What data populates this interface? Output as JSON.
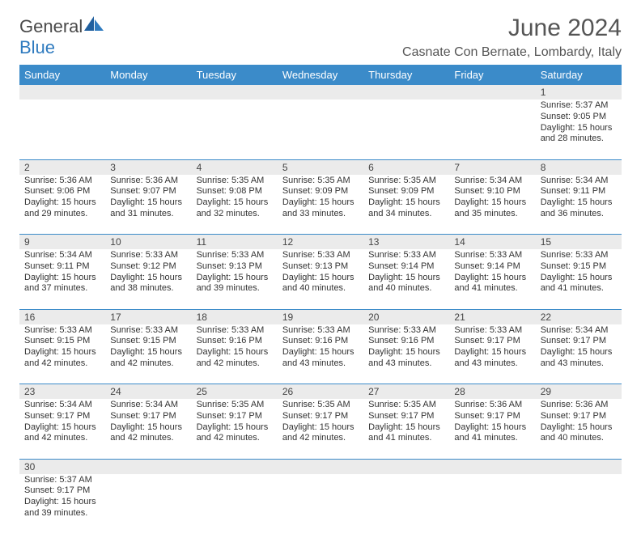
{
  "logo": {
    "text1": "General",
    "text2": "Blue"
  },
  "title": "June 2024",
  "location": "Casnate Con Bernate, Lombardy, Italy",
  "colors": {
    "header_bg": "#3b8bc9",
    "header_text": "#ffffff",
    "daynum_bg": "#ebebeb",
    "border": "#3b8bc9",
    "logo_gray": "#4a4a4a",
    "logo_blue": "#2f7bbf"
  },
  "weekdays": [
    "Sunday",
    "Monday",
    "Tuesday",
    "Wednesday",
    "Thursday",
    "Friday",
    "Saturday"
  ],
  "weeks": [
    {
      "nums": [
        "",
        "",
        "",
        "",
        "",
        "",
        "1"
      ],
      "cells": [
        null,
        null,
        null,
        null,
        null,
        null,
        {
          "sunrise": "Sunrise: 5:37 AM",
          "sunset": "Sunset: 9:05 PM",
          "day1": "Daylight: 15 hours",
          "day2": "and 28 minutes."
        }
      ]
    },
    {
      "nums": [
        "2",
        "3",
        "4",
        "5",
        "6",
        "7",
        "8"
      ],
      "cells": [
        {
          "sunrise": "Sunrise: 5:36 AM",
          "sunset": "Sunset: 9:06 PM",
          "day1": "Daylight: 15 hours",
          "day2": "and 29 minutes."
        },
        {
          "sunrise": "Sunrise: 5:36 AM",
          "sunset": "Sunset: 9:07 PM",
          "day1": "Daylight: 15 hours",
          "day2": "and 31 minutes."
        },
        {
          "sunrise": "Sunrise: 5:35 AM",
          "sunset": "Sunset: 9:08 PM",
          "day1": "Daylight: 15 hours",
          "day2": "and 32 minutes."
        },
        {
          "sunrise": "Sunrise: 5:35 AM",
          "sunset": "Sunset: 9:09 PM",
          "day1": "Daylight: 15 hours",
          "day2": "and 33 minutes."
        },
        {
          "sunrise": "Sunrise: 5:35 AM",
          "sunset": "Sunset: 9:09 PM",
          "day1": "Daylight: 15 hours",
          "day2": "and 34 minutes."
        },
        {
          "sunrise": "Sunrise: 5:34 AM",
          "sunset": "Sunset: 9:10 PM",
          "day1": "Daylight: 15 hours",
          "day2": "and 35 minutes."
        },
        {
          "sunrise": "Sunrise: 5:34 AM",
          "sunset": "Sunset: 9:11 PM",
          "day1": "Daylight: 15 hours",
          "day2": "and 36 minutes."
        }
      ]
    },
    {
      "nums": [
        "9",
        "10",
        "11",
        "12",
        "13",
        "14",
        "15"
      ],
      "cells": [
        {
          "sunrise": "Sunrise: 5:34 AM",
          "sunset": "Sunset: 9:11 PM",
          "day1": "Daylight: 15 hours",
          "day2": "and 37 minutes."
        },
        {
          "sunrise": "Sunrise: 5:33 AM",
          "sunset": "Sunset: 9:12 PM",
          "day1": "Daylight: 15 hours",
          "day2": "and 38 minutes."
        },
        {
          "sunrise": "Sunrise: 5:33 AM",
          "sunset": "Sunset: 9:13 PM",
          "day1": "Daylight: 15 hours",
          "day2": "and 39 minutes."
        },
        {
          "sunrise": "Sunrise: 5:33 AM",
          "sunset": "Sunset: 9:13 PM",
          "day1": "Daylight: 15 hours",
          "day2": "and 40 minutes."
        },
        {
          "sunrise": "Sunrise: 5:33 AM",
          "sunset": "Sunset: 9:14 PM",
          "day1": "Daylight: 15 hours",
          "day2": "and 40 minutes."
        },
        {
          "sunrise": "Sunrise: 5:33 AM",
          "sunset": "Sunset: 9:14 PM",
          "day1": "Daylight: 15 hours",
          "day2": "and 41 minutes."
        },
        {
          "sunrise": "Sunrise: 5:33 AM",
          "sunset": "Sunset: 9:15 PM",
          "day1": "Daylight: 15 hours",
          "day2": "and 41 minutes."
        }
      ]
    },
    {
      "nums": [
        "16",
        "17",
        "18",
        "19",
        "20",
        "21",
        "22"
      ],
      "cells": [
        {
          "sunrise": "Sunrise: 5:33 AM",
          "sunset": "Sunset: 9:15 PM",
          "day1": "Daylight: 15 hours",
          "day2": "and 42 minutes."
        },
        {
          "sunrise": "Sunrise: 5:33 AM",
          "sunset": "Sunset: 9:15 PM",
          "day1": "Daylight: 15 hours",
          "day2": "and 42 minutes."
        },
        {
          "sunrise": "Sunrise: 5:33 AM",
          "sunset": "Sunset: 9:16 PM",
          "day1": "Daylight: 15 hours",
          "day2": "and 42 minutes."
        },
        {
          "sunrise": "Sunrise: 5:33 AM",
          "sunset": "Sunset: 9:16 PM",
          "day1": "Daylight: 15 hours",
          "day2": "and 43 minutes."
        },
        {
          "sunrise": "Sunrise: 5:33 AM",
          "sunset": "Sunset: 9:16 PM",
          "day1": "Daylight: 15 hours",
          "day2": "and 43 minutes."
        },
        {
          "sunrise": "Sunrise: 5:33 AM",
          "sunset": "Sunset: 9:17 PM",
          "day1": "Daylight: 15 hours",
          "day2": "and 43 minutes."
        },
        {
          "sunrise": "Sunrise: 5:34 AM",
          "sunset": "Sunset: 9:17 PM",
          "day1": "Daylight: 15 hours",
          "day2": "and 43 minutes."
        }
      ]
    },
    {
      "nums": [
        "23",
        "24",
        "25",
        "26",
        "27",
        "28",
        "29"
      ],
      "cells": [
        {
          "sunrise": "Sunrise: 5:34 AM",
          "sunset": "Sunset: 9:17 PM",
          "day1": "Daylight: 15 hours",
          "day2": "and 42 minutes."
        },
        {
          "sunrise": "Sunrise: 5:34 AM",
          "sunset": "Sunset: 9:17 PM",
          "day1": "Daylight: 15 hours",
          "day2": "and 42 minutes."
        },
        {
          "sunrise": "Sunrise: 5:35 AM",
          "sunset": "Sunset: 9:17 PM",
          "day1": "Daylight: 15 hours",
          "day2": "and 42 minutes."
        },
        {
          "sunrise": "Sunrise: 5:35 AM",
          "sunset": "Sunset: 9:17 PM",
          "day1": "Daylight: 15 hours",
          "day2": "and 42 minutes."
        },
        {
          "sunrise": "Sunrise: 5:35 AM",
          "sunset": "Sunset: 9:17 PM",
          "day1": "Daylight: 15 hours",
          "day2": "and 41 minutes."
        },
        {
          "sunrise": "Sunrise: 5:36 AM",
          "sunset": "Sunset: 9:17 PM",
          "day1": "Daylight: 15 hours",
          "day2": "and 41 minutes."
        },
        {
          "sunrise": "Sunrise: 5:36 AM",
          "sunset": "Sunset: 9:17 PM",
          "day1": "Daylight: 15 hours",
          "day2": "and 40 minutes."
        }
      ]
    },
    {
      "nums": [
        "30",
        "",
        "",
        "",
        "",
        "",
        ""
      ],
      "cells": [
        {
          "sunrise": "Sunrise: 5:37 AM",
          "sunset": "Sunset: 9:17 PM",
          "day1": "Daylight: 15 hours",
          "day2": "and 39 minutes."
        },
        null,
        null,
        null,
        null,
        null,
        null
      ]
    }
  ]
}
